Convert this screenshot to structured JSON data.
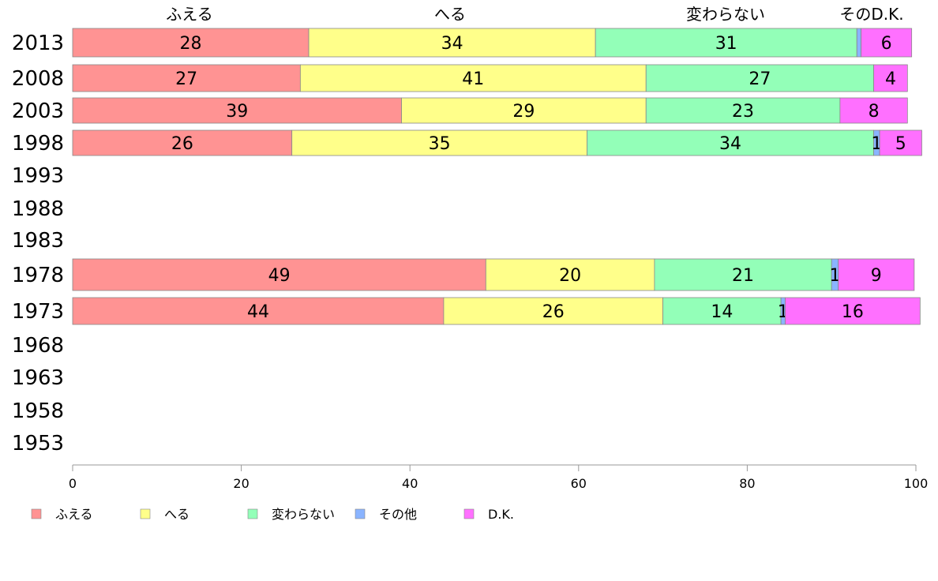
{
  "chart_data": {
    "type": "bar",
    "orientation": "horizontal",
    "stacked": true,
    "categories": [
      "2013",
      "2008",
      "2003",
      "1998",
      "1993",
      "1988",
      "1983",
      "1978",
      "1973",
      "1968",
      "1963",
      "1958",
      "1953"
    ],
    "series": [
      {
        "name": "ふえる",
        "color": "#ff9393",
        "values": [
          28,
          27,
          39,
          26,
          null,
          null,
          null,
          49,
          44,
          null,
          null,
          null,
          null
        ]
      },
      {
        "name": "へる",
        "color": "#ffff8a",
        "values": [
          34,
          41,
          29,
          35,
          null,
          null,
          null,
          20,
          26,
          null,
          null,
          null,
          null
        ]
      },
      {
        "name": "変わらない",
        "color": "#93ffb8",
        "values": [
          31,
          27,
          23,
          34,
          null,
          null,
          null,
          21,
          14,
          null,
          null,
          null,
          null
        ]
      },
      {
        "name": "その他",
        "color": "#8ab4ff",
        "values": [
          0.5,
          0,
          0,
          0.7,
          null,
          null,
          null,
          0.8,
          0.5,
          null,
          null,
          null,
          null
        ]
      },
      {
        "name": "D.K.",
        "color": "#ff70ff",
        "values": [
          6,
          4,
          8,
          5,
          null,
          null,
          null,
          9,
          16,
          null,
          null,
          null,
          null
        ]
      }
    ],
    "data_labels": [
      [
        "28",
        "34",
        "31",
        "",
        "6"
      ],
      [
        "27",
        "41",
        "27",
        "",
        "4"
      ],
      [
        "39",
        "29",
        "23",
        "",
        "8"
      ],
      [
        "26",
        "35",
        "34",
        "1",
        "5"
      ],
      [],
      [],
      [],
      [
        "49",
        "20",
        "21",
        "1",
        "9"
      ],
      [
        "44",
        "26",
        "14",
        "1",
        "16"
      ],
      [],
      [],
      [],
      []
    ],
    "top_labels": [
      "ふえる",
      "へる",
      "変わらない",
      "そのD.K."
    ],
    "xlim": [
      0,
      100
    ],
    "xticks": [
      "0",
      "20",
      "40",
      "60",
      "80",
      "100"
    ],
    "legend_position": "bottom-left",
    "grid": false
  }
}
